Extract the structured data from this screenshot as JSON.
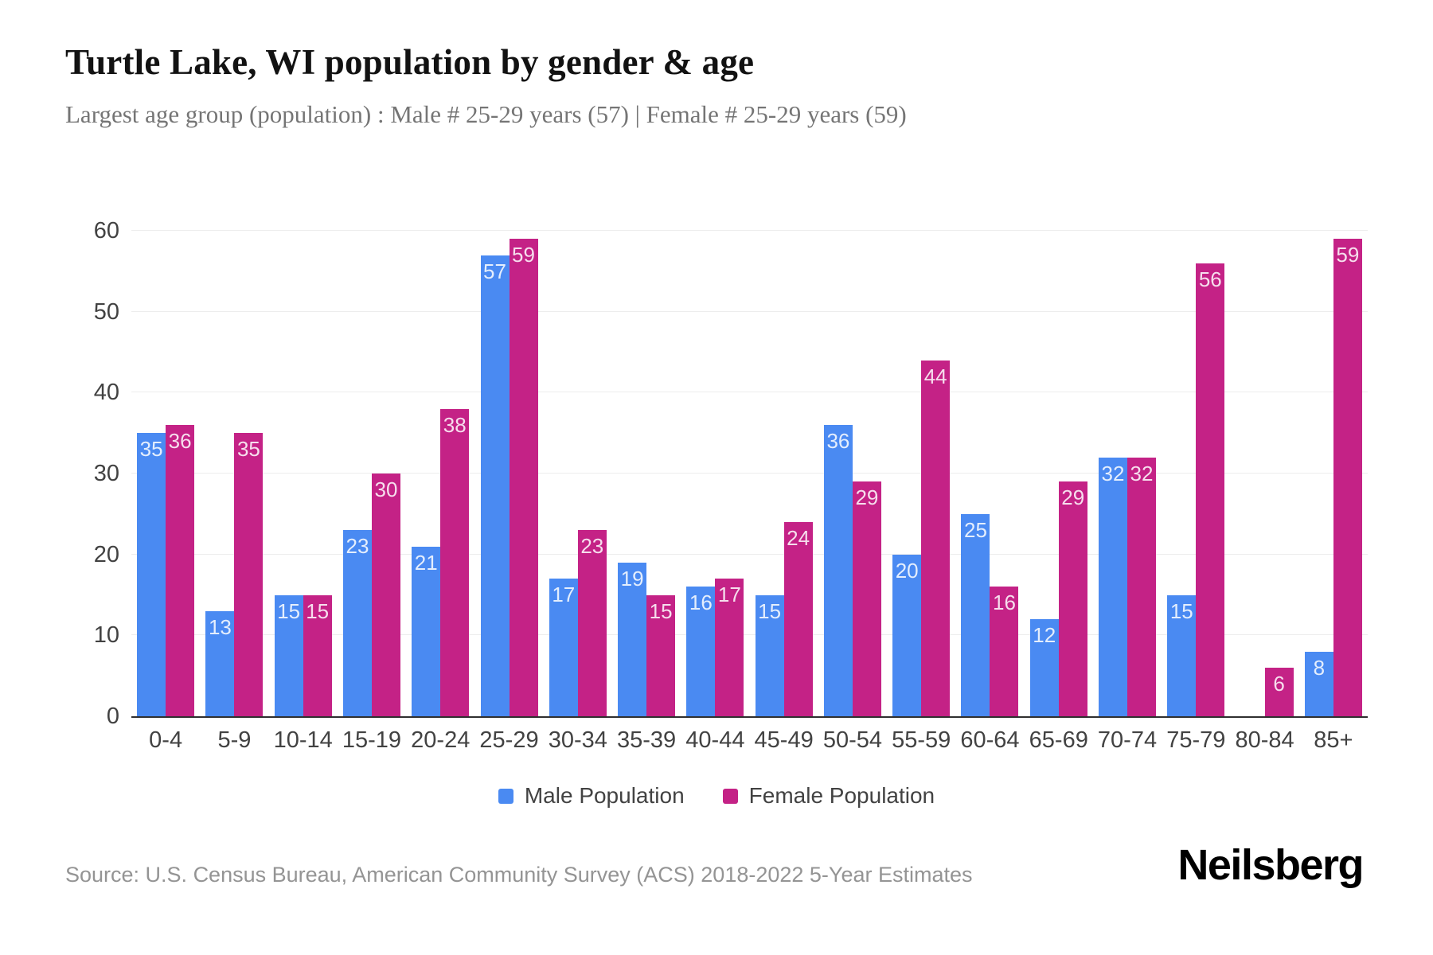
{
  "page": {
    "title": "Turtle Lake, WI population by gender & age",
    "subtitle": "Largest age group (population) : Male # 25-29 years (57) | Female # 25-29 years (59)"
  },
  "chart_data": {
    "type": "bar",
    "title": "Turtle Lake, WI population by gender & age",
    "categories": [
      "0-4",
      "5-9",
      "10-14",
      "15-19",
      "20-24",
      "25-29",
      "30-34",
      "35-39",
      "40-44",
      "45-49",
      "50-54",
      "55-59",
      "60-64",
      "65-69",
      "70-74",
      "75-79",
      "80-84",
      "85+"
    ],
    "series": [
      {
        "name": "Male Population",
        "color": "#4A8AF2",
        "values": [
          35,
          13,
          15,
          23,
          21,
          57,
          17,
          19,
          16,
          15,
          36,
          20,
          25,
          12,
          32,
          15,
          0,
          8
        ]
      },
      {
        "name": "Female Population",
        "color": "#C42286",
        "values": [
          36,
          35,
          15,
          30,
          38,
          59,
          23,
          15,
          17,
          24,
          29,
          44,
          16,
          29,
          32,
          56,
          6,
          59
        ]
      }
    ],
    "xlabel": "",
    "ylabel": "",
    "ylim": [
      0,
      60
    ],
    "yticks": [
      0,
      10,
      20,
      30,
      40,
      50,
      60
    ],
    "grid": "horizontal",
    "legend_position": "bottom",
    "bar_value_labels": "inside-top"
  },
  "legend": {
    "items": [
      {
        "label": "Male Population",
        "color": "#4A8AF2"
      },
      {
        "label": "Female Population",
        "color": "#C42286"
      }
    ]
  },
  "footer": {
    "source": "Source: U.S. Census Bureau, American Community Survey (ACS) 2018-2022 5-Year Estimates",
    "brand": "Neilsberg"
  },
  "colors": {
    "male": "#4A8AF2",
    "female": "#C42286",
    "gridline": "#ededed",
    "axis_line": "#2f2f2f",
    "title": "#121212",
    "subtitle": "#757575",
    "tick_label": "#424242",
    "source": "#949494"
  }
}
